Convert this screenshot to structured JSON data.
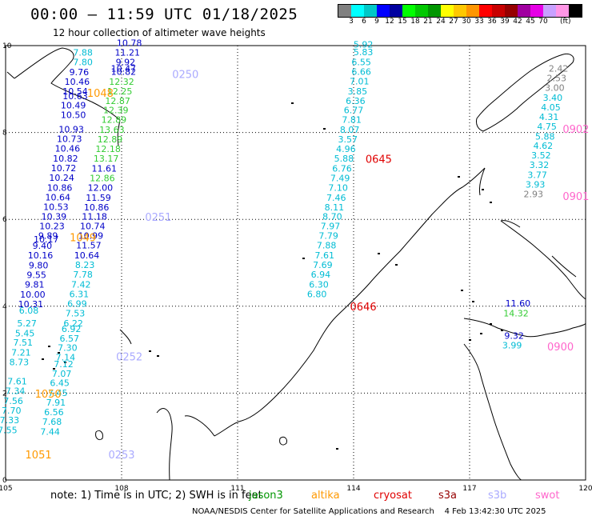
{
  "header": {
    "title": "00:00 – 11:59 UTC 01/18/2025",
    "subtitle": "12 hour collection of altimeter wave heights"
  },
  "colorbar": {
    "colors": [
      "#808080",
      "#00ffff",
      "#00c8c8",
      "#0000ff",
      "#0000a0",
      "#00ff00",
      "#00c800",
      "#009600",
      "#ffff00",
      "#ffc800",
      "#ff9600",
      "#ff0000",
      "#c80000",
      "#960000",
      "#a000a0",
      "#e600e6",
      "#c8a0ff",
      "#ff96e6",
      "#000000"
    ],
    "labels": [
      "3",
      "6",
      "9",
      "12",
      "15",
      "18",
      "21",
      "24",
      "27",
      "30",
      "33",
      "36",
      "39",
      "42",
      "45",
      "70"
    ],
    "unit": "(ft)"
  },
  "map": {
    "lon_ticks": [
      "105",
      "108",
      "111",
      "114",
      "117",
      "120"
    ],
    "lat_ticks": [
      "0",
      "2",
      "4",
      "6",
      "8",
      "10"
    ],
    "colors": {
      "cyan": "#00bcd4",
      "blue": "#0000c8",
      "green": "#33cc33",
      "gray": "#808080",
      "orange": "#ff9900",
      "red": "#e00000",
      "lav": "#aaaaff",
      "pink": "#ff66cc"
    },
    "tracks": [
      {
        "points": [
          {
            "v": "7.88",
            "lon": 107.0,
            "lat": 9.77,
            "c": "cyan"
          },
          {
            "v": "7.80",
            "lon": 107.0,
            "lat": 9.55,
            "c": "cyan"
          },
          {
            "v": "9.76",
            "lon": 106.9,
            "lat": 9.32,
            "c": "blue"
          },
          {
            "v": "10.46",
            "lon": 106.85,
            "lat": 9.1,
            "c": "blue"
          },
          {
            "v": "10.54",
            "lon": 106.8,
            "lat": 8.88,
            "c": "blue"
          },
          {
            "v": "10.63",
            "lon": 106.8,
            "lat": 8.77,
            "c": "blue"
          },
          {
            "v": "10.49",
            "lon": 106.75,
            "lat": 8.55,
            "c": "blue"
          },
          {
            "v": "10.50",
            "lon": 106.75,
            "lat": 8.33,
            "c": "blue"
          },
          {
            "v": "10.93",
            "lon": 106.7,
            "lat": 8.0,
            "c": "blue"
          },
          {
            "v": "10.73",
            "lon": 106.65,
            "lat": 7.78,
            "c": "blue"
          },
          {
            "v": "10.46",
            "lon": 106.6,
            "lat": 7.56,
            "c": "blue"
          },
          {
            "v": "10.82",
            "lon": 106.55,
            "lat": 7.33,
            "c": "blue"
          },
          {
            "v": "10.72",
            "lon": 106.5,
            "lat": 7.11,
            "c": "blue"
          },
          {
            "v": "10.24",
            "lon": 106.45,
            "lat": 6.89,
            "c": "blue"
          },
          {
            "v": "10.86",
            "lon": 106.4,
            "lat": 6.66,
            "c": "blue"
          },
          {
            "v": "10.64",
            "lon": 106.35,
            "lat": 6.44,
            "c": "blue"
          },
          {
            "v": "10.53",
            "lon": 106.3,
            "lat": 6.22,
            "c": "blue"
          },
          {
            "v": "10.39",
            "lon": 106.25,
            "lat": 5.99,
            "c": "blue"
          },
          {
            "v": "10.23",
            "lon": 106.2,
            "lat": 5.77,
            "c": "blue"
          },
          {
            "v": "9.89",
            "lon": 106.1,
            "lat": 5.55,
            "c": "blue"
          },
          {
            "v": "10.17",
            "lon": 106.05,
            "lat": 5.47,
            "c": "blue"
          },
          {
            "v": "9.40",
            "lon": 105.95,
            "lat": 5.32,
            "c": "blue"
          },
          {
            "v": "10.16",
            "lon": 105.9,
            "lat": 5.1,
            "c": "blue"
          },
          {
            "v": "9.80",
            "lon": 105.85,
            "lat": 4.87,
            "c": "blue"
          },
          {
            "v": "9.55",
            "lon": 105.8,
            "lat": 4.65,
            "c": "blue"
          },
          {
            "v": "9.81",
            "lon": 105.75,
            "lat": 4.43,
            "c": "blue"
          },
          {
            "v": "10.00",
            "lon": 105.7,
            "lat": 4.2,
            "c": "blue"
          },
          {
            "v": "10.31",
            "lon": 105.65,
            "lat": 3.98,
            "c": "blue"
          },
          {
            "v": "6.08",
            "lon": 105.6,
            "lat": 3.83,
            "c": "cyan"
          },
          {
            "v": "5.27",
            "lon": 105.55,
            "lat": 3.54,
            "c": "cyan"
          },
          {
            "v": "5.45",
            "lon": 105.5,
            "lat": 3.31,
            "c": "cyan"
          },
          {
            "v": "7.51",
            "lon": 105.45,
            "lat": 3.09,
            "c": "cyan"
          },
          {
            "v": "7.21",
            "lon": 105.4,
            "lat": 2.86,
            "c": "cyan"
          },
          {
            "v": "8.73",
            "lon": 105.35,
            "lat": 2.64,
            "c": "cyan"
          },
          {
            "v": "7.61",
            "lon": 105.3,
            "lat": 2.2,
            "c": "cyan"
          },
          {
            "v": "7.34",
            "lon": 105.25,
            "lat": 1.98,
            "c": "cyan"
          },
          {
            "v": "7.56",
            "lon": 105.2,
            "lat": 1.75,
            "c": "cyan"
          },
          {
            "v": "7.70",
            "lon": 105.15,
            "lat": 1.53,
            "c": "cyan"
          },
          {
            "v": "7.33",
            "lon": 105.1,
            "lat": 1.31,
            "c": "cyan"
          },
          {
            "v": "7.55",
            "lon": 105.05,
            "lat": 1.08,
            "c": "cyan"
          }
        ]
      },
      {
        "points": [
          {
            "v": "10.78",
            "lon": 108.2,
            "lat": 9.99,
            "c": "blue"
          },
          {
            "v": "11.21",
            "lon": 108.15,
            "lat": 9.77,
            "c": "blue"
          },
          {
            "v": "9.92",
            "lon": 108.1,
            "lat": 9.55,
            "c": "blue"
          },
          {
            "v": "10.47",
            "lon": 108.05,
            "lat": 9.4,
            "c": "blue"
          },
          {
            "v": "10.82",
            "lon": 108.05,
            "lat": 9.33,
            "c": "blue"
          },
          {
            "v": "12.32",
            "lon": 108.0,
            "lat": 9.1,
            "c": "green"
          },
          {
            "v": "12.25",
            "lon": 107.95,
            "lat": 8.88,
            "c": "green"
          },
          {
            "v": "12.87",
            "lon": 107.9,
            "lat": 8.66,
            "c": "green"
          },
          {
            "v": "12.39",
            "lon": 107.85,
            "lat": 8.44,
            "c": "green"
          },
          {
            "v": "12.89",
            "lon": 107.8,
            "lat": 8.22,
            "c": "green"
          },
          {
            "v": "13.63",
            "lon": 107.75,
            "lat": 7.99,
            "c": "green"
          },
          {
            "v": "12.89",
            "lon": 107.7,
            "lat": 7.77,
            "c": "green"
          },
          {
            "v": "12.18",
            "lon": 107.65,
            "lat": 7.55,
            "c": "green"
          },
          {
            "v": "13.17",
            "lon": 107.6,
            "lat": 7.33,
            "c": "green"
          },
          {
            "v": "11.61",
            "lon": 107.55,
            "lat": 7.1,
            "c": "blue"
          },
          {
            "v": "12.86",
            "lon": 107.5,
            "lat": 6.88,
            "c": "green"
          },
          {
            "v": "12.00",
            "lon": 107.45,
            "lat": 6.66,
            "c": "blue"
          },
          {
            "v": "11.59",
            "lon": 107.4,
            "lat": 6.43,
            "c": "blue"
          },
          {
            "v": "10.86",
            "lon": 107.35,
            "lat": 6.21,
            "c": "blue"
          },
          {
            "v": "11.18",
            "lon": 107.3,
            "lat": 5.99,
            "c": "blue"
          },
          {
            "v": "10.74",
            "lon": 107.25,
            "lat": 5.77,
            "c": "blue"
          },
          {
            "v": "10.99",
            "lon": 107.2,
            "lat": 5.55,
            "c": "blue"
          },
          {
            "v": "11.57",
            "lon": 107.15,
            "lat": 5.33,
            "c": "blue"
          },
          {
            "v": "10.64",
            "lon": 107.1,
            "lat": 5.1,
            "c": "blue"
          },
          {
            "v": "8.23",
            "lon": 107.05,
            "lat": 4.88,
            "c": "cyan"
          },
          {
            "v": "7.78",
            "lon": 107.0,
            "lat": 4.66,
            "c": "cyan"
          },
          {
            "v": "7.42",
            "lon": 106.95,
            "lat": 4.43,
            "c": "cyan"
          },
          {
            "v": "6.31",
            "lon": 106.9,
            "lat": 4.21,
            "c": "cyan"
          },
          {
            "v": "6.99",
            "lon": 106.85,
            "lat": 3.99,
            "c": "cyan"
          },
          {
            "v": "7.53",
            "lon": 106.8,
            "lat": 3.77,
            "c": "cyan"
          },
          {
            "v": "6.22",
            "lon": 106.75,
            "lat": 3.54,
            "c": "cyan"
          },
          {
            "v": "6.92",
            "lon": 106.7,
            "lat": 3.41,
            "c": "cyan"
          },
          {
            "v": "6.57",
            "lon": 106.65,
            "lat": 3.19,
            "c": "cyan"
          },
          {
            "v": "7.30",
            "lon": 106.6,
            "lat": 2.97,
            "c": "cyan"
          },
          {
            "v": "7.14",
            "lon": 106.55,
            "lat": 2.75,
            "c": "cyan"
          },
          {
            "v": "7.12",
            "lon": 106.5,
            "lat": 2.6,
            "c": "cyan"
          },
          {
            "v": "7.07",
            "lon": 106.45,
            "lat": 2.38,
            "c": "cyan"
          },
          {
            "v": "6.45",
            "lon": 106.4,
            "lat": 2.16,
            "c": "cyan"
          },
          {
            "v": "7.45",
            "lon": 106.35,
            "lat": 1.93,
            "c": "cyan"
          },
          {
            "v": "7.91",
            "lon": 106.3,
            "lat": 1.71,
            "c": "cyan"
          },
          {
            "v": "6.56",
            "lon": 106.25,
            "lat": 1.49,
            "c": "cyan"
          },
          {
            "v": "7.68",
            "lon": 106.2,
            "lat": 1.27,
            "c": "cyan"
          },
          {
            "v": "7.44",
            "lon": 106.15,
            "lat": 1.04,
            "c": "cyan"
          }
        ]
      },
      {
        "points": [
          {
            "v": "5.92",
            "lon": 114.25,
            "lat": 9.95,
            "c": "cyan"
          },
          {
            "v": "5.83",
            "lon": 114.25,
            "lat": 9.78,
            "c": "cyan"
          },
          {
            "v": "6.55",
            "lon": 114.2,
            "lat": 9.55,
            "c": "cyan"
          },
          {
            "v": "6.66",
            "lon": 114.2,
            "lat": 9.33,
            "c": "cyan"
          },
          {
            "v": "7.01",
            "lon": 114.15,
            "lat": 9.11,
            "c": "cyan"
          },
          {
            "v": "3.85",
            "lon": 114.1,
            "lat": 8.88,
            "c": "cyan"
          },
          {
            "v": "6.36",
            "lon": 114.05,
            "lat": 8.66,
            "c": "cyan"
          },
          {
            "v": "6.77",
            "lon": 114.0,
            "lat": 8.44,
            "c": "cyan"
          },
          {
            "v": "7.81",
            "lon": 113.95,
            "lat": 8.22,
            "c": "cyan"
          },
          {
            "v": "8.07",
            "lon": 113.9,
            "lat": 7.99,
            "c": "cyan"
          },
          {
            "v": "3.57",
            "lon": 113.85,
            "lat": 7.77,
            "c": "cyan"
          },
          {
            "v": "4.96",
            "lon": 113.8,
            "lat": 7.55,
            "c": "cyan"
          },
          {
            "v": "5.88",
            "lon": 113.75,
            "lat": 7.33,
            "c": "cyan"
          },
          {
            "v": "6.76",
            "lon": 113.7,
            "lat": 7.1,
            "c": "cyan"
          },
          {
            "v": "7.49",
            "lon": 113.65,
            "lat": 6.88,
            "c": "cyan"
          },
          {
            "v": "7.10",
            "lon": 113.6,
            "lat": 6.66,
            "c": "cyan"
          },
          {
            "v": "7.46",
            "lon": 113.55,
            "lat": 6.43,
            "c": "cyan"
          },
          {
            "v": "8.11",
            "lon": 113.5,
            "lat": 6.21,
            "c": "cyan"
          },
          {
            "v": "8.70",
            "lon": 113.45,
            "lat": 5.99,
            "c": "cyan"
          },
          {
            "v": "7.97",
            "lon": 113.4,
            "lat": 5.77,
            "c": "cyan"
          },
          {
            "v": "7.79",
            "lon": 113.35,
            "lat": 5.55,
            "c": "cyan"
          },
          {
            "v": "7.88",
            "lon": 113.3,
            "lat": 5.33,
            "c": "cyan"
          },
          {
            "v": "7.61",
            "lon": 113.25,
            "lat": 5.1,
            "c": "cyan"
          },
          {
            "v": "7.69",
            "lon": 113.2,
            "lat": 4.88,
            "c": "cyan"
          },
          {
            "v": "6.94",
            "lon": 113.15,
            "lat": 4.66,
            "c": "cyan"
          },
          {
            "v": "6.30",
            "lon": 113.1,
            "lat": 4.43,
            "c": "cyan"
          },
          {
            "v": "6.80",
            "lon": 113.05,
            "lat": 4.21,
            "c": "cyan"
          }
        ]
      },
      {
        "points": [
          {
            "v": "2.42",
            "lon": 119.3,
            "lat": 9.4,
            "c": "gray"
          },
          {
            "v": "2.53",
            "lon": 119.25,
            "lat": 9.18,
            "c": "gray"
          },
          {
            "v": "3.00",
            "lon": 119.2,
            "lat": 8.96,
            "c": "gray"
          },
          {
            "v": "3.40",
            "lon": 119.15,
            "lat": 8.73,
            "c": "cyan"
          },
          {
            "v": "4.05",
            "lon": 119.1,
            "lat": 8.51,
            "c": "cyan"
          },
          {
            "v": "4.31",
            "lon": 119.05,
            "lat": 8.29,
            "c": "cyan"
          },
          {
            "v": "4.75",
            "lon": 119.0,
            "lat": 8.07,
            "c": "cyan"
          },
          {
            "v": "5.88",
            "lon": 118.95,
            "lat": 7.84,
            "c": "cyan"
          },
          {
            "v": "4.62",
            "lon": 118.9,
            "lat": 7.62,
            "c": "cyan"
          },
          {
            "v": "3.52",
            "lon": 118.85,
            "lat": 7.4,
            "c": "cyan"
          },
          {
            "v": "3.32",
            "lon": 118.8,
            "lat": 7.18,
            "c": "cyan"
          },
          {
            "v": "3.77",
            "lon": 118.75,
            "lat": 6.95,
            "c": "cyan"
          },
          {
            "v": "3.93",
            "lon": 118.7,
            "lat": 6.73,
            "c": "cyan"
          },
          {
            "v": "2.93",
            "lon": 118.65,
            "lat": 6.51,
            "c": "gray"
          }
        ]
      },
      {
        "points": [
          {
            "v": "11.60",
            "lon": 118.25,
            "lat": 4.0,
            "c": "blue"
          },
          {
            "v": "14.32",
            "lon": 118.2,
            "lat": 3.77,
            "c": "green"
          },
          {
            "v": "9.32",
            "lon": 118.15,
            "lat": 3.25,
            "c": "blue"
          },
          {
            "v": "3.99",
            "lon": 118.1,
            "lat": 3.03,
            "c": "cyan"
          }
        ]
      }
    ],
    "time_labels": [
      {
        "t": "0250",
        "lon": 109.65,
        "lat": 9.25,
        "c": "lav"
      },
      {
        "t": "1048",
        "lon": 107.45,
        "lat": 8.82,
        "c": "orange"
      },
      {
        "t": "0645",
        "lon": 114.65,
        "lat": 7.3,
        "c": "red"
      },
      {
        "t": "0902",
        "lon": 119.75,
        "lat": 7.99,
        "c": "pink"
      },
      {
        "t": "0901",
        "lon": 119.75,
        "lat": 6.45,
        "c": "pink"
      },
      {
        "t": "0251",
        "lon": 108.95,
        "lat": 5.97,
        "c": "lav"
      },
      {
        "t": "1049",
        "lon": 107.0,
        "lat": 5.5,
        "c": "orange"
      },
      {
        "t": "0646",
        "lon": 114.25,
        "lat": 3.9,
        "c": "red"
      },
      {
        "t": "0900",
        "lon": 119.35,
        "lat": 2.98,
        "c": "pink"
      },
      {
        "t": "0252",
        "lon": 108.2,
        "lat": 2.75,
        "c": "lav"
      },
      {
        "t": "1050",
        "lon": 106.1,
        "lat": 1.9,
        "c": "orange"
      },
      {
        "t": "1051",
        "lon": 105.85,
        "lat": 0.5,
        "c": "orange"
      },
      {
        "t": "0253",
        "lon": 108.0,
        "lat": 0.5,
        "c": "lav"
      }
    ]
  },
  "legend": {
    "note": "note:  1) Time is in UTC;  2) SWH is in feet",
    "items": [
      {
        "label": "jason3",
        "color": "#009600"
      },
      {
        "label": "altika",
        "color": "#ff9900"
      },
      {
        "label": "cryosat",
        "color": "#e00000"
      },
      {
        "label": "s3a",
        "color": "#960000"
      },
      {
        "label": "s3b",
        "color": "#aaaaff"
      },
      {
        "label": "swot",
        "color": "#ff66cc"
      }
    ]
  },
  "credit": "NOAA/NESDIS Center for Satellite Applications and Research    4 Feb 13:42:30 UTC 2025"
}
